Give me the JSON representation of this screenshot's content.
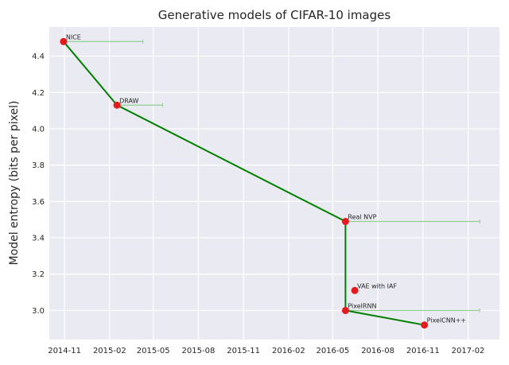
{
  "chart_data": {
    "type": "scatter",
    "title": "Generative models of CIFAR-10 images",
    "xlabel": "",
    "ylabel": "Model entropy (bits per pixel)",
    "x_is_date": true,
    "xlim": [
      "2014-10-01",
      "2017-04-06"
    ],
    "ylim": [
      2.84,
      4.56
    ],
    "xticks": [
      {
        "date": "2014-11-01",
        "label": "2014-11"
      },
      {
        "date": "2015-02-01",
        "label": "2015-02"
      },
      {
        "date": "2015-05-01",
        "label": "2015-05"
      },
      {
        "date": "2015-08-01",
        "label": "2015-08"
      },
      {
        "date": "2015-11-01",
        "label": "2015-11"
      },
      {
        "date": "2016-02-01",
        "label": "2016-02"
      },
      {
        "date": "2016-05-01",
        "label": "2016-05"
      },
      {
        "date": "2016-08-01",
        "label": "2016-08"
      },
      {
        "date": "2016-11-01",
        "label": "2016-11"
      },
      {
        "date": "2017-02-01",
        "label": "2017-02"
      }
    ],
    "yticks": [
      {
        "value": 3.0,
        "label": "3.0"
      },
      {
        "value": 3.2,
        "label": "3.2"
      },
      {
        "value": 3.4,
        "label": "3.4"
      },
      {
        "value": 3.6,
        "label": "3.6"
      },
      {
        "value": 3.8,
        "label": "3.8"
      },
      {
        "value": 4.0,
        "label": "4.0"
      },
      {
        "value": 4.2,
        "label": "4.2"
      },
      {
        "value": 4.4,
        "label": "4.4"
      }
    ],
    "points": [
      {
        "label": "NICE",
        "date": "2014-10-30",
        "value": 4.48,
        "range_end": "2015-04-10"
      },
      {
        "label": "DRAW",
        "date": "2015-02-16",
        "value": 4.13,
        "range_end": "2015-05-20"
      },
      {
        "label": "Real NVP",
        "date": "2016-05-27",
        "value": 3.49,
        "range_end": "2017-02-25"
      },
      {
        "label": "VAE with IAF",
        "date": "2016-06-15",
        "value": 3.11,
        "range_end": null
      },
      {
        "label": "PixelRNN",
        "date": "2016-05-27",
        "value": 3.0,
        "range_end": "2017-02-25"
      },
      {
        "label": "PixelCNN++",
        "date": "2016-11-04",
        "value": 2.92,
        "range_end": null
      }
    ],
    "frontier": [
      "NICE",
      "DRAW",
      "Real NVP",
      "PixelRNN",
      "PixelCNN++"
    ],
    "colors": {
      "background": "#eaeaf2",
      "grid": "#ffffff",
      "frontier_line": "#008000",
      "range_line": "#8fd18f",
      "marker": "#e41a1c"
    },
    "grid": true
  }
}
